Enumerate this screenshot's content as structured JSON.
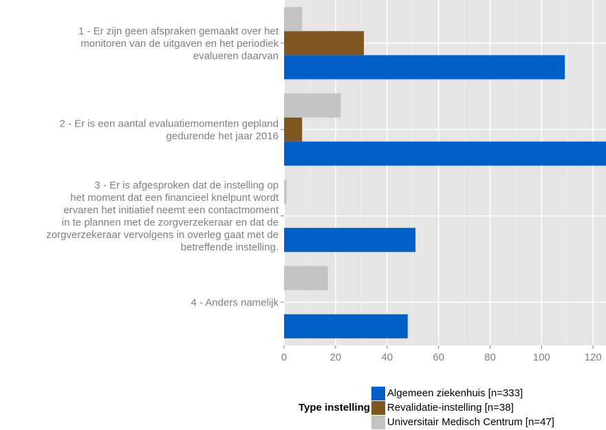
{
  "chart_data": {
    "type": "bar",
    "orientation": "horizontal",
    "categories": [
      [
        "1 - Er zijn geen afspraken gemaakt over het",
        "monitoren van de uitgaven en het periodiek",
        "evalueren daarvan"
      ],
      [
        "2 - Er is een aantal evaluatiemomenten gepland",
        "gedurende het jaar 2016"
      ],
      [
        "3 - Er is afgesproken dat de instelling op",
        "het moment dat een financieel knelpunt wordt",
        "ervaren het initiatief neemt een contactmoment",
        "in te plannen met de zorgverzekeraar en dat de",
        "zorgverzekeraar vervolgens in overleg gaat met de",
        "betreffende instelling."
      ],
      [
        "4 - Anders namelijk"
      ]
    ],
    "series": [
      {
        "name": "Algemeen ziekenhuis [n=333]",
        "color": "#0060c8",
        "values": [
          109,
          125,
          51,
          48
        ]
      },
      {
        "name": "Revalidatie-instelling [n=38]",
        "color": "#7f5520",
        "values": [
          31,
          7,
          0,
          0
        ]
      },
      {
        "name": "Universitair Medisch Centrum [n=47]",
        "color": "#c3c3c3",
        "values": [
          7,
          22,
          1,
          17
        ]
      }
    ],
    "xlim": [
      0,
      125
    ],
    "xticks": [
      0,
      20,
      40,
      60,
      80,
      100,
      120
    ],
    "xlabel": "",
    "ylabel": "",
    "grid": true,
    "legend": {
      "title": "Type instelling",
      "position": "bottom"
    },
    "panel_background": "#e5e5e5",
    "grid_color": "#ffffff"
  }
}
